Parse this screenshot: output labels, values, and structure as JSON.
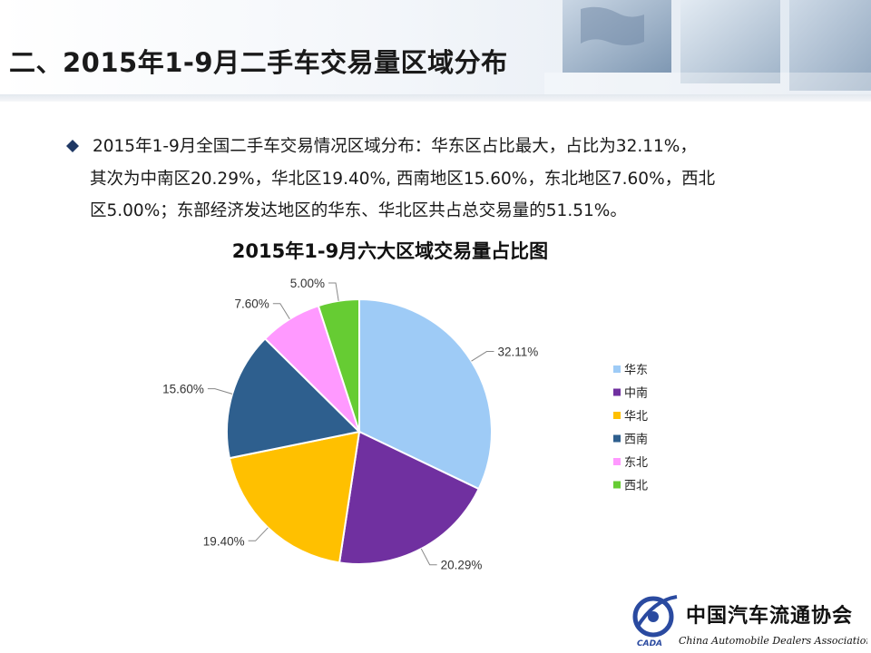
{
  "page": {
    "title": "二、2015年1-9月二手车交易量区域分布"
  },
  "summary": {
    "lines": [
      "2015年1-9月全国二手车交易情况区域分布：华东区占比最大，占比为32.11%，",
      "其次为中南区20.29%，华北区19.40%, 西南地区15.60%，东北地区7.60%，西北",
      "区5.00%；东部经济发达地区的华东、华北区共占总交易量的51.51%。"
    ]
  },
  "chart_data": {
    "type": "pie",
    "title": "2015年1-9月六大区域交易量占比图",
    "categories": [
      "华东",
      "中南",
      "华北",
      "西南",
      "东北",
      "西北"
    ],
    "values": [
      32.11,
      20.29,
      19.4,
      15.6,
      7.6,
      5.0
    ],
    "data_labels": [
      "32.11%",
      "20.29%",
      "19.40%",
      "15.60%",
      "7.60%",
      "5.00%"
    ],
    "colors": [
      "#9ecbf6",
      "#7030a0",
      "#ffc000",
      "#2e5f8e",
      "#ff99ff",
      "#66cc33"
    ],
    "legend_position": "right"
  },
  "logo": {
    "name_cn": "中国汽车流通协会",
    "name_en": "China Automobile Dealers Association",
    "abbr": "CADA"
  },
  "colors": {
    "bullet": "#1f3864",
    "title": "#1a1a1a"
  }
}
